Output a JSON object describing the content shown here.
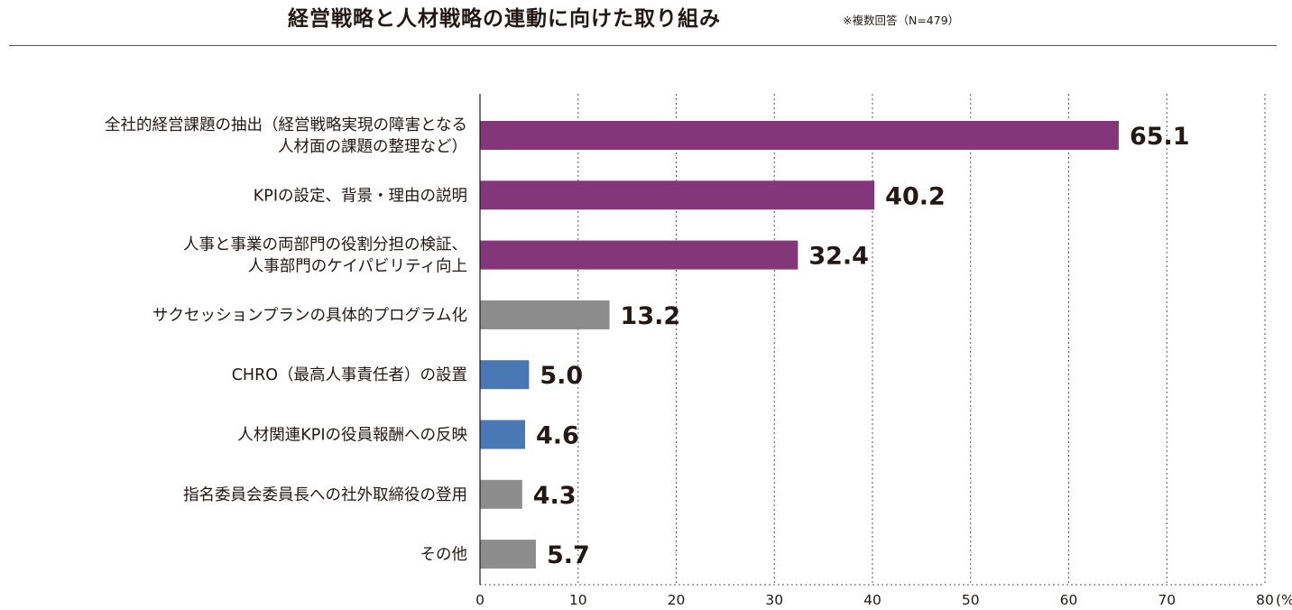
{
  "chart_data": {
    "type": "bar",
    "orientation": "horizontal",
    "title": "経営戦略と人材戦略の連動に向けた取り組み",
    "note": "※複数回答（N=479）",
    "categories": [
      "全社的経営課題の抽出（経営戦略実現の障害となる人材面の課題の整理など）",
      "KPIの設定、背景・理由の説明",
      "人事と事業の両部門の役割分担の検証、人事部門のケイパビリティ向上",
      "サクセッションプランの具体的プログラム化",
      "CHRO（最高人事責任者）の設置",
      "人材関連KPIの役員報酬への反映",
      "指名委員会委員長への社外取締役の登用",
      "その他"
    ],
    "category_lines": [
      [
        "全社的経営課題の抽出（経営戦略実現の障害となる",
        "人材面の課題の整理など）"
      ],
      [
        "KPIの設定、背景・理由の説明"
      ],
      [
        "人事と事業の両部門の役割分担の検証、",
        "人事部門のケイパビリティ向上"
      ],
      [
        "サクセッションプランの具体的プログラム化"
      ],
      [
        "CHRO（最高人事責任者）の設置"
      ],
      [
        "人材関連KPIの役員報酬への反映"
      ],
      [
        "指名委員会委員長への社外取締役の登用"
      ],
      [
        "その他"
      ]
    ],
    "values": [
      65.1,
      40.2,
      32.4,
      13.2,
      5.0,
      4.6,
      4.3,
      5.7
    ],
    "value_labels": [
      "65.1",
      "40.2",
      "32.4",
      "13.2",
      "5.0",
      "4.6",
      "4.3",
      "5.7"
    ],
    "bar_colors": [
      "#83367a",
      "#83367a",
      "#83367a",
      "#8c8c8c",
      "#4a78b5",
      "#4a78b5",
      "#8c8c8c",
      "#8c8c8c"
    ],
    "x_ticks": [
      "0",
      "10",
      "20",
      "30",
      "40",
      "50",
      "60",
      "70",
      "80"
    ],
    "x_unit": "(%)",
    "xlim": [
      0,
      80
    ],
    "grid": "vertical dotted"
  }
}
